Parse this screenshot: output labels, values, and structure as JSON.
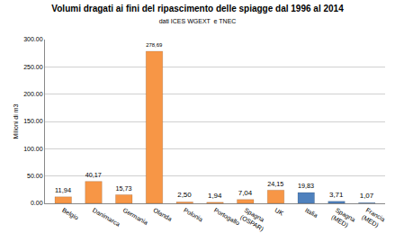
{
  "chart_data": {
    "type": "bar",
    "title": "Volumi dragati ai fini del ripascimento delle spiagge dal 1996 al 2014",
    "subtitle": "dati ICES WGEXT  e TNEC",
    "y_label": "Milioni di m3",
    "categories": [
      "Belgio",
      "Danimarca",
      "Germania",
      "Olanda",
      "Polonia",
      "Portogallo",
      "Spagna (OSPAR)",
      "UK",
      "Italia",
      "Spagna (MED)",
      "Francia (MED)"
    ],
    "values": [
      11.94,
      40.17,
      15.73,
      278.69,
      2.5,
      1.94,
      7.04,
      24.15,
      19.83,
      3.71,
      1.07
    ],
    "value_labels": [
      "11,94",
      "40,17",
      "15,73",
      "278,69",
      "2,50",
      "1,94",
      "7,04",
      "24,15",
      "19,83",
      "3,71",
      "1,07"
    ],
    "colors": [
      "#f79646",
      "#f79646",
      "#f79646",
      "#f79646",
      "#f79646",
      "#f79646",
      "#f79646",
      "#f79646",
      "#4f81bd",
      "#4f81bd",
      "#4f81bd"
    ],
    "data_labels": true,
    "ylim": [
      0,
      300
    ],
    "yticks": [
      {
        "value": 0,
        "label": "0.00"
      },
      {
        "value": 50,
        "label": "50.00"
      },
      {
        "value": 100,
        "label": "100.00"
      },
      {
        "value": 150,
        "label": "150.00"
      },
      {
        "value": 200,
        "label": "200.00"
      },
      {
        "value": 250,
        "label": "250.00"
      },
      {
        "value": 300,
        "label": "300.00"
      }
    ],
    "grid": true
  }
}
